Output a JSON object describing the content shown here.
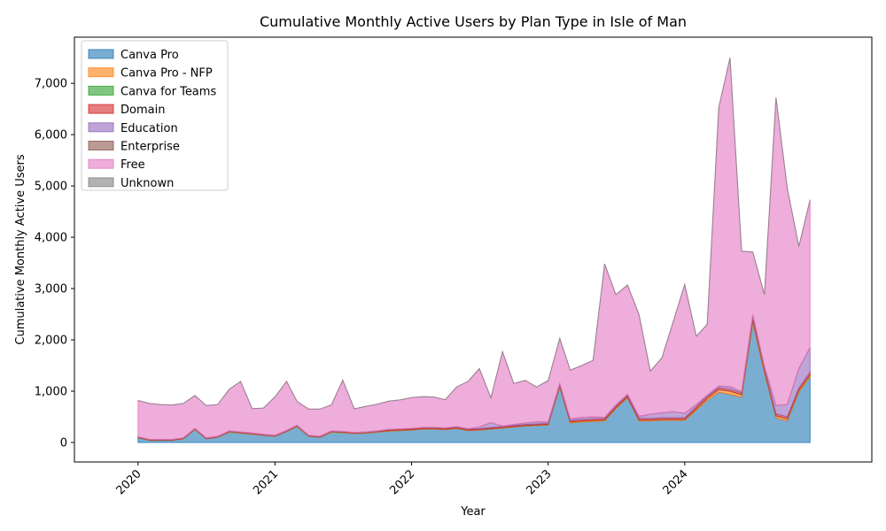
{
  "chart_data": {
    "type": "area",
    "stacked": true,
    "title": "Cumulative Monthly Active Users by Plan Type in Isle of Man",
    "xlabel": "Year",
    "ylabel": "Cumulative Monthly Active Users",
    "ylim": [
      -380,
      7900
    ],
    "xlim": [
      "2019-07-15",
      "2025-05-15"
    ],
    "y_ticks": [
      0,
      1000,
      2000,
      3000,
      4000,
      5000,
      6000,
      7000
    ],
    "y_tick_labels": [
      "0",
      "1,000",
      "2,000",
      "3,000",
      "4,000",
      "5,000",
      "6,000",
      "7,000"
    ],
    "x_ticks": [
      "2020-01-01",
      "2021-01-01",
      "2022-01-01",
      "2023-01-01",
      "2024-01-01"
    ],
    "x_tick_labels": [
      "2020",
      "2021",
      "2022",
      "2023",
      "2024"
    ],
    "x_tick_rotation": 45,
    "legend_position": "upper-left",
    "grid": false,
    "x": [
      "2020-01",
      "2020-02",
      "2020-03",
      "2020-04",
      "2020-05",
      "2020-06",
      "2020-07",
      "2020-08",
      "2020-09",
      "2020-10",
      "2020-11",
      "2020-12",
      "2021-01",
      "2021-02",
      "2021-03",
      "2021-04",
      "2021-05",
      "2021-06",
      "2021-07",
      "2021-08",
      "2021-09",
      "2021-10",
      "2021-11",
      "2021-12",
      "2022-01",
      "2022-02",
      "2022-03",
      "2022-04",
      "2022-05",
      "2022-06",
      "2022-07",
      "2022-08",
      "2022-09",
      "2022-10",
      "2022-11",
      "2022-12",
      "2023-01",
      "2023-02",
      "2023-03",
      "2023-04",
      "2023-05",
      "2023-06",
      "2023-07",
      "2023-08",
      "2023-09",
      "2023-10",
      "2023-11",
      "2023-12",
      "2024-01",
      "2024-02",
      "2024-03",
      "2024-04",
      "2024-05",
      "2024-06",
      "2024-07",
      "2024-08",
      "2024-09",
      "2024-10",
      "2024-11",
      "2024-12"
    ],
    "series": [
      {
        "name": "Canva Pro",
        "color": "#1f77b4",
        "values": [
          90,
          40,
          40,
          40,
          70,
          250,
          70,
          100,
          200,
          180,
          160,
          140,
          120,
          210,
          310,
          120,
          100,
          200,
          190,
          170,
          180,
          200,
          220,
          230,
          240,
          260,
          260,
          250,
          270,
          230,
          240,
          260,
          280,
          300,
          320,
          330,
          340,
          1080,
          380,
          400,
          410,
          420,
          660,
          870,
          420,
          420,
          430,
          430,
          430,
          630,
          820,
          980,
          940,
          880,
          2330,
          1350,
          480,
          420,
          980,
          1280
        ]
      },
      {
        "name": "Canva Pro - NFP",
        "color": "#ff7f0e",
        "values": [
          5,
          5,
          5,
          5,
          5,
          10,
          5,
          5,
          10,
          10,
          10,
          5,
          5,
          10,
          10,
          5,
          5,
          10,
          10,
          10,
          10,
          10,
          10,
          10,
          10,
          10,
          10,
          10,
          10,
          10,
          10,
          10,
          10,
          10,
          10,
          10,
          10,
          20,
          20,
          20,
          20,
          20,
          20,
          20,
          20,
          20,
          20,
          20,
          20,
          30,
          40,
          50,
          60,
          50,
          60,
          50,
          40,
          40,
          40,
          40
        ]
      },
      {
        "name": "Canva for Teams",
        "color": "#2ca02c",
        "values": [
          0,
          0,
          0,
          0,
          0,
          0,
          0,
          0,
          0,
          0,
          0,
          0,
          0,
          0,
          0,
          0,
          0,
          0,
          0,
          0,
          0,
          0,
          0,
          0,
          0,
          0,
          0,
          0,
          0,
          0,
          0,
          0,
          0,
          0,
          0,
          0,
          0,
          0,
          0,
          0,
          0,
          0,
          0,
          0,
          0,
          0,
          0,
          0,
          0,
          0,
          0,
          0,
          0,
          0,
          0,
          0,
          0,
          0,
          0,
          0
        ]
      },
      {
        "name": "Domain",
        "color": "#d62728",
        "values": [
          10,
          10,
          10,
          10,
          10,
          10,
          10,
          10,
          10,
          10,
          10,
          10,
          10,
          10,
          10,
          10,
          10,
          10,
          10,
          10,
          10,
          10,
          20,
          20,
          20,
          20,
          20,
          20,
          20,
          20,
          20,
          20,
          20,
          20,
          20,
          20,
          20,
          30,
          30,
          30,
          30,
          30,
          30,
          30,
          30,
          30,
          30,
          30,
          30,
          40,
          40,
          40,
          40,
          40,
          50,
          40,
          40,
          40,
          40,
          50
        ]
      },
      {
        "name": "Education",
        "color": "#9467bd",
        "values": [
          5,
          5,
          5,
          5,
          5,
          5,
          5,
          5,
          5,
          5,
          5,
          5,
          5,
          5,
          5,
          5,
          5,
          5,
          5,
          5,
          5,
          5,
          5,
          5,
          5,
          5,
          5,
          5,
          10,
          10,
          30,
          100,
          10,
          20,
          30,
          40,
          30,
          20,
          30,
          40,
          40,
          20,
          20,
          20,
          40,
          80,
          100,
          120,
          90,
          40,
          20,
          30,
          50,
          20,
          50,
          40,
          160,
          240,
          380,
          480
        ]
      },
      {
        "name": "Enterprise",
        "color": "#8c564b",
        "values": [
          0,
          0,
          0,
          0,
          0,
          0,
          0,
          0,
          0,
          0,
          0,
          0,
          0,
          0,
          0,
          0,
          0,
          0,
          0,
          0,
          0,
          0,
          0,
          0,
          0,
          0,
          0,
          0,
          0,
          0,
          0,
          0,
          0,
          0,
          0,
          0,
          0,
          0,
          0,
          0,
          0,
          0,
          0,
          0,
          0,
          0,
          0,
          0,
          0,
          0,
          0,
          0,
          0,
          0,
          0,
          0,
          0,
          0,
          0,
          0
        ]
      },
      {
        "name": "Free",
        "color": "#e377c2",
        "values": [
          710,
          700,
          680,
          670,
          670,
          640,
          630,
          620,
          815,
          985,
          475,
          510,
          750,
          955,
          465,
          510,
          530,
          510,
          1000,
          460,
          500,
          520,
          550,
          565,
          600,
          600,
          590,
          550,
          770,
          920,
          1140,
          480,
          1450,
          800,
          830,
          680,
          805,
          880,
          950,
          1010,
          1100,
          2990,
          2150,
          2130,
          1980,
          840,
          1070,
          1750,
          2510,
          1330,
          1380,
          5430,
          6410,
          2740,
          1220,
          1400,
          6000,
          4220,
          2380,
          2880
        ]
      },
      {
        "name": "Unknown",
        "color": "#7f7f7f",
        "values": [
          0,
          0,
          0,
          0,
          0,
          0,
          0,
          0,
          0,
          0,
          0,
          0,
          0,
          0,
          0,
          0,
          0,
          0,
          0,
          0,
          0,
          0,
          0,
          0,
          0,
          0,
          0,
          0,
          0,
          0,
          0,
          0,
          0,
          0,
          0,
          0,
          0,
          0,
          0,
          0,
          0,
          0,
          0,
          0,
          0,
          0,
          0,
          0,
          0,
          0,
          0,
          0,
          0,
          0,
          0,
          0,
          0,
          0,
          0,
          0
        ]
      }
    ]
  }
}
